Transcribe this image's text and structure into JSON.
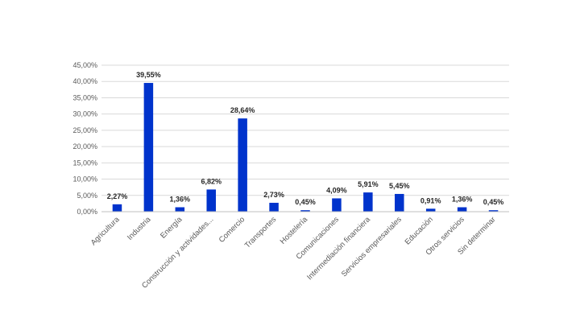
{
  "chart_data": {
    "type": "bar",
    "title": "",
    "xlabel": "",
    "ylabel": "",
    "ylim": [
      0,
      45
    ],
    "yticks": [
      0,
      5,
      10,
      15,
      20,
      25,
      30,
      35,
      40,
      45
    ],
    "ytick_labels": [
      "0,00%",
      "5,00%",
      "10,00%",
      "15,00%",
      "20,00%",
      "25,00%",
      "30,00%",
      "35,00%",
      "40,00%",
      "45,00%"
    ],
    "categories": [
      "Agricultura",
      "Industria",
      "Energía",
      "Construcción y actividades...",
      "Comercio",
      "Transportes",
      "Hostelería",
      "Comunicaciones",
      "Intermediación financiera",
      "Servicios empresariales",
      "Educación",
      "Otros servicios",
      "Sin determinar"
    ],
    "values": [
      2.27,
      39.55,
      1.36,
      6.82,
      28.64,
      2.73,
      0.45,
      4.09,
      5.91,
      5.45,
      0.91,
      1.36,
      0.45
    ],
    "data_labels": [
      "2,27%",
      "39,55%",
      "1,36%",
      "6,82%",
      "28,64%",
      "2,73%",
      "0,45%",
      "4,09%",
      "5,91%",
      "5,45%",
      "0,91%",
      "1,36%",
      "0,45%"
    ],
    "grid": true,
    "legend": "none",
    "bar_color": "#0033cc"
  }
}
